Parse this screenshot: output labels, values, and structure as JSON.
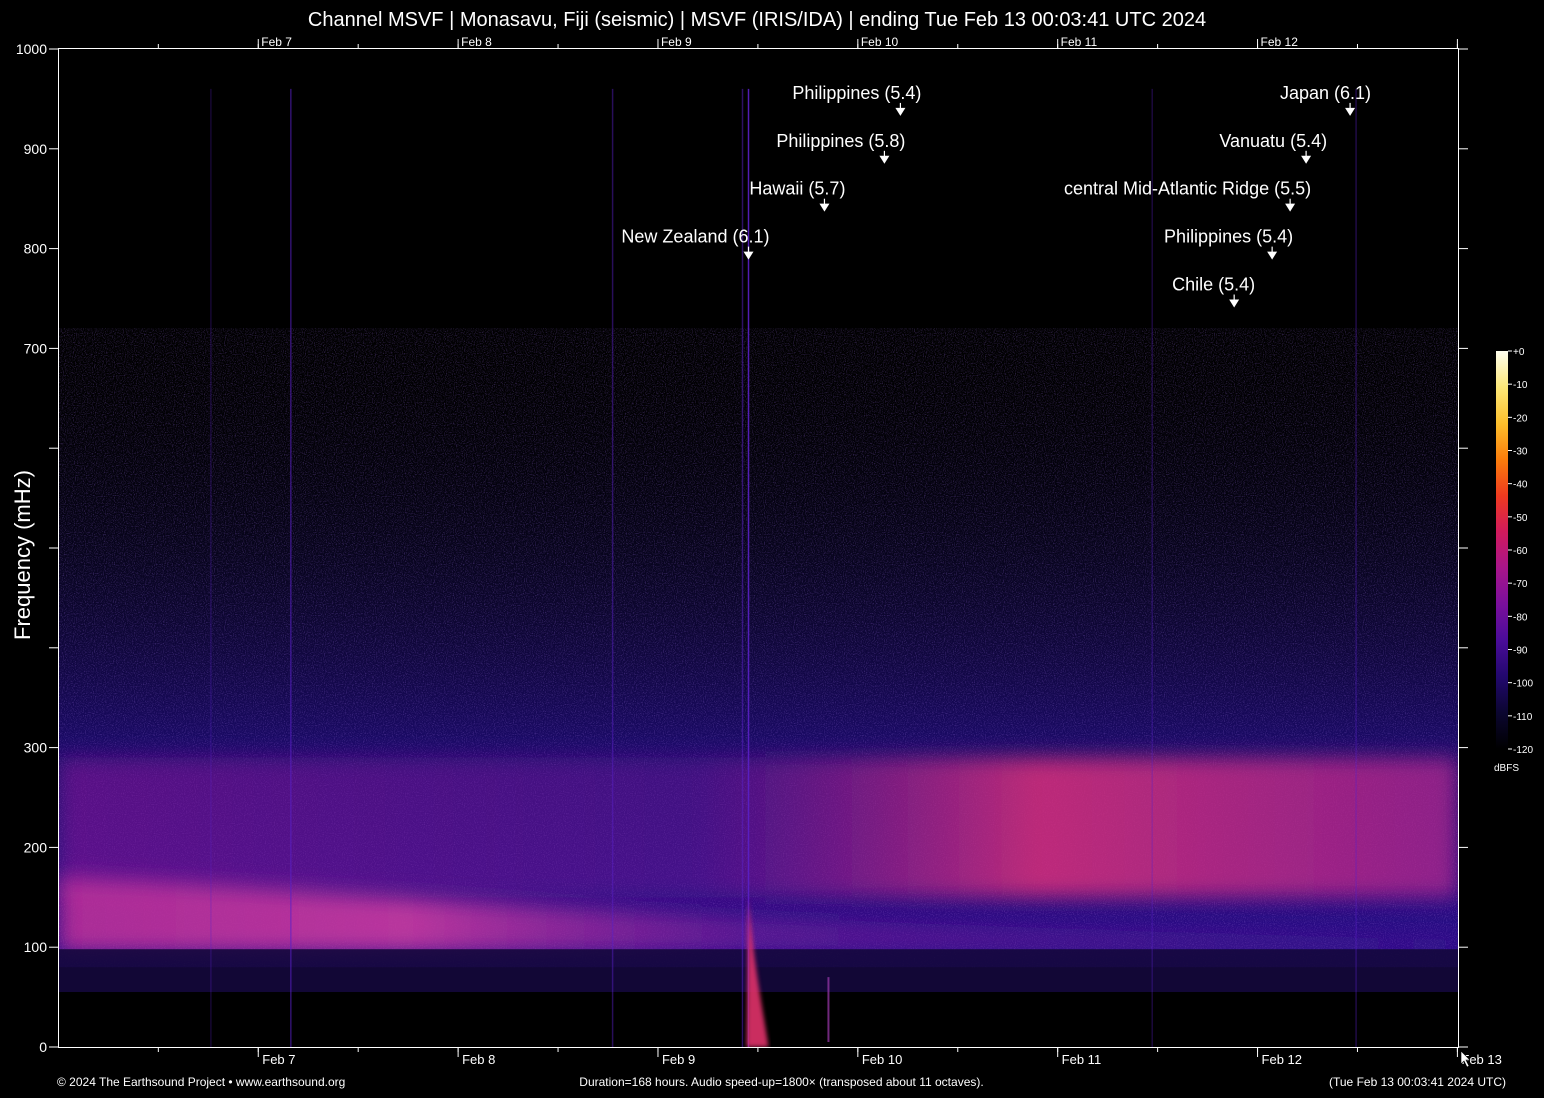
{
  "title": "Channel MSVF | Monasavu, Fiji (seismic) | MSVF (IRIS/IDA) | ending Tue Feb 13 00:03:41 UTC 2024",
  "footer": {
    "left": "© 2024 The Earthsound Project • www.earthsound.org",
    "center": "Duration=168 hours. Audio speed-up=1800× (transposed about 11 octaves).",
    "right": "(Tue Feb 13 00:03:41 2024 UTC)"
  },
  "chart_data": {
    "type": "heatmap",
    "ylabel": "Frequency (mHz)",
    "ylim": [
      0,
      1000
    ],
    "y_ticks": [
      {
        "value": 0,
        "label": "0"
      },
      {
        "value": 100,
        "label": "100"
      },
      {
        "value": 200,
        "label": "200"
      },
      {
        "value": 300,
        "label": "300"
      },
      {
        "value": 400,
        "label": ""
      },
      {
        "value": 500,
        "label": ""
      },
      {
        "value": 600,
        "label": ""
      },
      {
        "value": 700,
        "label": "700"
      },
      {
        "value": 800,
        "label": "800"
      },
      {
        "value": 900,
        "label": "900"
      },
      {
        "value": 1000,
        "label": "1000"
      }
    ],
    "x_range_days": [
      "Feb 6 00:03",
      "Feb 13 00:03"
    ],
    "x_ticks": [
      {
        "day": 0.997,
        "label": "Feb 7"
      },
      {
        "day": 1.997,
        "label": "Feb 8"
      },
      {
        "day": 2.997,
        "label": "Feb 9"
      },
      {
        "day": 3.997,
        "label": "Feb 10"
      },
      {
        "day": 4.997,
        "label": "Feb 11"
      },
      {
        "day": 5.997,
        "label": "Feb 12"
      },
      {
        "day": 6.997,
        "label": "Feb 13"
      }
    ],
    "colorbar": {
      "unit": "dBFS",
      "ticks": [
        "+0",
        "-10",
        "-20",
        "-30",
        "-40",
        "-50",
        "-60",
        "-70",
        "-80",
        "-90",
        "-100",
        "-110",
        "-120"
      ],
      "colors": [
        "#000000",
        "#0b0630",
        "#22086e",
        "#4a0c99",
        "#7a0f9c",
        "#a8158a",
        "#d11a5c",
        "#ef3a1f",
        "#fb7d0b",
        "#fcbf2c",
        "#fde878",
        "#fffff0"
      ]
    },
    "events": [
      {
        "label": "New Zealand (6.1)",
        "day": 3.45,
        "freq": 790,
        "y_label": 812
      },
      {
        "label": "Hawaii (5.7)",
        "day": 3.83,
        "freq": 838,
        "y_label": 860
      },
      {
        "label": "Philippines (5.8)",
        "day": 4.13,
        "freq": 886,
        "y_label": 908
      },
      {
        "label": "Philippines (5.4)",
        "day": 4.21,
        "freq": 934,
        "y_label": 956
      },
      {
        "label": "Chile (5.4)",
        "day": 5.88,
        "freq": 742,
        "y_label": 764
      },
      {
        "label": "Philippines (5.4)",
        "day": 6.07,
        "freq": 790,
        "y_label": 812
      },
      {
        "label": "central Mid-Atlantic Ridge (5.5)",
        "day": 6.16,
        "freq": 838,
        "y_label": 860
      },
      {
        "label": "Vanuatu (5.4)",
        "day": 6.24,
        "freq": 886,
        "y_label": 908
      },
      {
        "label": "Japan (6.1)",
        "day": 6.46,
        "freq": 934,
        "y_label": 956
      }
    ]
  }
}
